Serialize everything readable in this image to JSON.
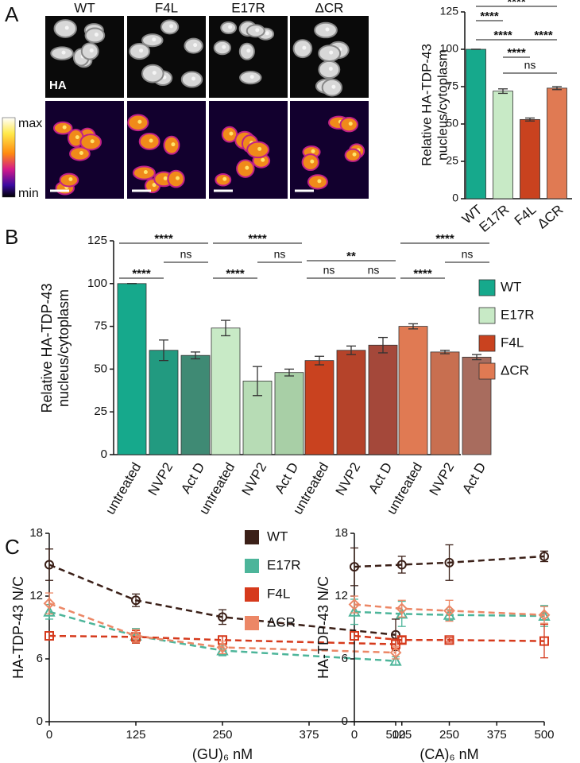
{
  "panels": [
    "A",
    "B",
    "C"
  ],
  "images": {
    "columns": [
      "WT",
      "F4L",
      "E17R",
      "ΔCR"
    ],
    "channel": "HA",
    "colorbar": [
      "max",
      "min"
    ]
  },
  "chart_data": [
    {
      "type": "bar",
      "ylabel": [
        "Relative HA-TDP-43",
        "nucleus/cytoplasm"
      ],
      "categories": [
        "WT",
        "E17R",
        "F4L",
        "ΔCR"
      ],
      "values": [
        100,
        72,
        53,
        74
      ],
      "errors": [
        0,
        1.5,
        1,
        1
      ],
      "colors": [
        "#16a98c",
        "#c8eac6",
        "#c9421f",
        "#e07a53"
      ],
      "ylim": [
        0,
        125
      ],
      "yticks": [
        0,
        25,
        50,
        75,
        100,
        125
      ],
      "comparisons": [
        {
          "label": "****",
          "between": [
            "WT",
            "ΔCR"
          ]
        },
        {
          "label": "****",
          "between": [
            "WT",
            "E17R"
          ]
        },
        {
          "label": "****",
          "between": [
            "WT",
            "F4L"
          ]
        },
        {
          "label": "****",
          "between": [
            "F4L",
            "ΔCR"
          ]
        },
        {
          "label": "****",
          "between": [
            "E17R",
            "F4L"
          ]
        },
        {
          "label": "ns",
          "between": [
            "E17R",
            "ΔCR"
          ]
        }
      ]
    },
    {
      "type": "grouped-bar",
      "ylabel": [
        "Relative HA-TDP-43",
        "nucleus/cytoplasm"
      ],
      "categories": [
        "untreated",
        "NVP2",
        "Act D"
      ],
      "ylim": [
        0,
        125
      ],
      "yticks": [
        0,
        25,
        50,
        75,
        100,
        125
      ],
      "series": [
        {
          "name": "WT",
          "colors": [
            "#16a98c",
            "#229a80",
            "#3f8a74"
          ],
          "values": [
            100,
            61,
            58
          ],
          "errors": [
            0,
            6,
            2
          ],
          "comparisons": [
            {
              "label": "****",
              "between": [
                "untreated",
                "Act D"
              ]
            },
            {
              "label": "ns",
              "between": [
                "NVP2",
                "Act D"
              ]
            },
            {
              "label": "****",
              "between": [
                "untreated",
                "NVP2"
              ]
            }
          ]
        },
        {
          "name": "E17R",
          "colors": [
            "#c8eac6",
            "#b7dcb5",
            "#a8cfa6"
          ],
          "values": [
            74,
            43,
            48
          ],
          "errors": [
            4.5,
            8.5,
            2
          ],
          "comparisons": [
            {
              "label": "****",
              "between": [
                "untreated",
                "Act D"
              ]
            },
            {
              "label": "ns",
              "between": [
                "NVP2",
                "Act D"
              ]
            },
            {
              "label": "****",
              "between": [
                "untreated",
                "NVP2"
              ]
            }
          ]
        },
        {
          "name": "F4L",
          "colors": [
            "#c9421f",
            "#b5432a",
            "#a4483a"
          ],
          "values": [
            55,
            61,
            64
          ],
          "errors": [
            2.5,
            2.5,
            4.5
          ],
          "comparisons": [
            {
              "label": "**",
              "between": [
                "untreated",
                "Act D"
              ]
            },
            {
              "label": "ns",
              "between": [
                "untreated",
                "NVP2"
              ]
            },
            {
              "label": "ns",
              "between": [
                "NVP2",
                "Act D"
              ]
            }
          ]
        },
        {
          "name": "ΔCR",
          "colors": [
            "#e07a53",
            "#c86f50",
            "#a86c5e"
          ],
          "values": [
            75,
            60,
            57
          ],
          "errors": [
            1.5,
            1,
            1.5
          ],
          "comparisons": [
            {
              "label": "****",
              "between": [
                "untreated",
                "Act D"
              ]
            },
            {
              "label": "ns",
              "between": [
                "NVP2",
                "Act D"
              ]
            },
            {
              "label": "****",
              "between": [
                "untreated",
                "NVP2"
              ]
            }
          ]
        }
      ]
    },
    {
      "type": "line",
      "legend": true,
      "ylabel": "HA-TDP-43 N/C",
      "xlabel": "(GU)₆ nM",
      "x": [
        0,
        125,
        250,
        500
      ],
      "xlim": [
        0,
        500
      ],
      "xticks": [
        0,
        125,
        250,
        375,
        500
      ],
      "ylim": [
        0,
        18
      ],
      "yticks": [
        0,
        6,
        12,
        18
      ],
      "series": [
        {
          "name": "WT",
          "color": "#3b2018",
          "marker": "circle",
          "values": [
            15,
            11.6,
            10,
            8.3
          ],
          "errors": [
            1.5,
            0.6,
            0.7,
            1.5
          ]
        },
        {
          "name": "E17R",
          "color": "#4db59a",
          "marker": "triangle",
          "values": [
            10.5,
            8.2,
            6.8,
            5.8
          ],
          "errors": [
            0.7,
            0.7,
            0.5,
            0.4
          ]
        },
        {
          "name": "F4L",
          "color": "#d63a1c",
          "marker": "square",
          "values": [
            8.2,
            8.1,
            7.8,
            7.4
          ],
          "errors": [
            0.4,
            0.6,
            0.4,
            0.5
          ]
        },
        {
          "name": "ΔCR",
          "color": "#ec8766",
          "marker": "diamond",
          "values": [
            11.3,
            8.2,
            7.1,
            6.6
          ],
          "errors": [
            1,
            0.6,
            0.6,
            0.6
          ]
        }
      ]
    },
    {
      "type": "line",
      "legend": false,
      "ylabel": "HA-TDP-43 N/C",
      "xlabel": "(CA)₆ nM",
      "x": [
        0,
        125,
        250,
        500
      ],
      "xlim": [
        0,
        500
      ],
      "xticks": [
        0,
        125,
        250,
        375,
        500
      ],
      "ylim": [
        0,
        18
      ],
      "yticks": [
        0,
        6,
        12,
        18
      ],
      "series": [
        {
          "name": "WT",
          "color": "#3b2018",
          "marker": "circle",
          "values": [
            14.8,
            15,
            15.2,
            15.8
          ],
          "errors": [
            1.8,
            0.8,
            1.7,
            0.5
          ]
        },
        {
          "name": "E17R",
          "color": "#4db59a",
          "marker": "triangle",
          "values": [
            10.5,
            10.3,
            10.2,
            10.1
          ],
          "errors": [
            1.2,
            1.2,
            0.5,
            1
          ]
        },
        {
          "name": "F4L",
          "color": "#d63a1c",
          "marker": "square",
          "values": [
            8.2,
            7.8,
            7.8,
            7.7
          ],
          "errors": [
            0.4,
            0.3,
            0.2,
            1.6
          ]
        },
        {
          "name": "ΔCR",
          "color": "#ec8766",
          "marker": "diamond",
          "values": [
            11.2,
            10.8,
            10.6,
            10.2
          ],
          "errors": [
            0.8,
            0.8,
            1,
            0.8
          ]
        }
      ]
    }
  ]
}
